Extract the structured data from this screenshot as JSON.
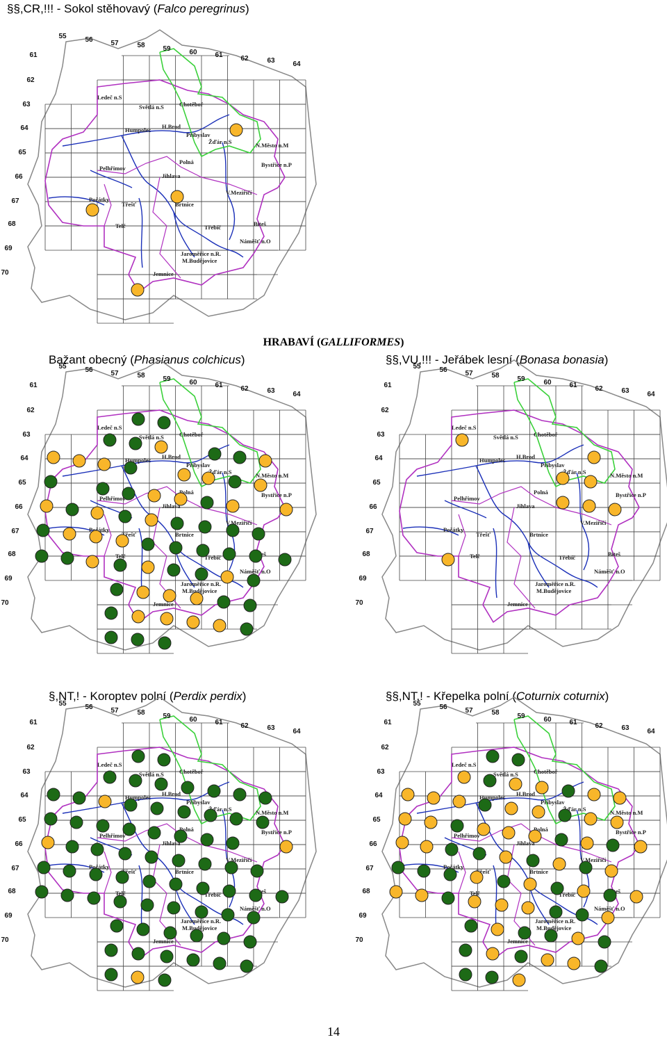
{
  "section": {
    "prefix": "HRABAVÍ (",
    "latin": "GALLIFORMES",
    "suffix": ")"
  },
  "maps": [
    {
      "title": {
        "prefix": "§§,CR,!!! - Sokol stěhovavý (",
        "latin": "Falco peregrinus",
        "suffix": ")"
      }
    },
    {
      "title": {
        "prefix": "Bažant obecný (",
        "latin": "Phasianus colchicus",
        "suffix": ")"
      }
    },
    {
      "title": {
        "prefix": "§§,VU,!!! - Jeřábek lesní (",
        "latin": "Bonasa bonasia",
        "suffix": ")"
      }
    },
    {
      "title": {
        "prefix": "§,NT,! - Koroptev polní (",
        "latin": "Perdix perdix",
        "suffix": ")"
      }
    },
    {
      "title": {
        "prefix": "§§,NT,! - Křepelka polní (",
        "latin": "Coturnix coturnix",
        "suffix": ")"
      }
    }
  ],
  "map_labels": {
    "columns": [
      "55",
      "56",
      "57",
      "58",
      "59",
      "60",
      "61",
      "62",
      "63",
      "64"
    ],
    "rows": [
      "61",
      "62",
      "63",
      "64",
      "65",
      "66",
      "67",
      "68",
      "69",
      "70"
    ],
    "towns": [
      "Ledeč n.S",
      "Světlá n.S",
      "Chotěboř",
      "Humpolec",
      "H.Brod",
      "Přibyslav",
      "Žďár n.S",
      "N.Město n.M",
      "Polná",
      "Bystřice n.P",
      "Pelhřimov",
      "Jihlava",
      "V.Meziříčí",
      "Počátky",
      "Třešť",
      "Brtnice",
      "Telč",
      "Třebíč",
      "Bíteš",
      "Náměšť n.O",
      "Jaroměřice n.R.",
      "M.Budějovice",
      "Jemnice"
    ]
  },
  "page_number": "14"
}
